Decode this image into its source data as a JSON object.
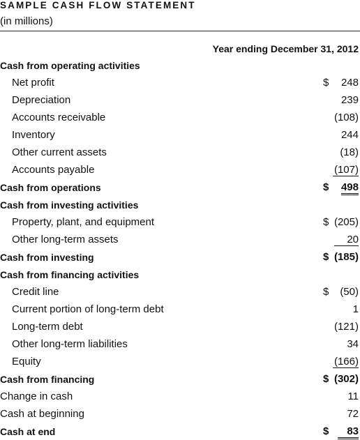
{
  "header": {
    "title": "SAMPLE CASH FLOW STATEMENT",
    "subtitle": "(in millions)",
    "column_heading": "Year ending December 31, 2012"
  },
  "rows": [
    {
      "label": "Cash from operating activities",
      "dollar": "",
      "amount": ""
    },
    {
      "label": "Net profit",
      "dollar": "$",
      "amount": "248"
    },
    {
      "label": "Depreciation",
      "dollar": "",
      "amount": "239"
    },
    {
      "label": "Accounts receivable",
      "dollar": "",
      "amount": "(108)"
    },
    {
      "label": "Inventory",
      "dollar": "",
      "amount": "244"
    },
    {
      "label": "Other current assets",
      "dollar": "",
      "amount": "(18)"
    },
    {
      "label": "Accounts payable",
      "dollar": "",
      "amount": "(107)"
    },
    {
      "label": "Cash from operations",
      "dollar": "$",
      "amount": "498"
    },
    {
      "label": "Cash from investing activities",
      "dollar": "",
      "amount": ""
    },
    {
      "label": "Property, plant, and equipment",
      "dollar": "$",
      "amount": "(205)"
    },
    {
      "label": "Other long-term assets",
      "dollar": "",
      "amount": "20"
    },
    {
      "label": "Cash from investing",
      "dollar": "$",
      "amount": "(185)"
    },
    {
      "label": "Cash from financing activities",
      "dollar": "",
      "amount": ""
    },
    {
      "label": "Credit line",
      "dollar": "$",
      "amount": "(50)"
    },
    {
      "label": "Current portion of long-term debt",
      "dollar": "",
      "amount": "1"
    },
    {
      "label": "Long-term debt",
      "dollar": "",
      "amount": "(121)"
    },
    {
      "label": "Other long-term liabilities",
      "dollar": "",
      "amount": "34"
    },
    {
      "label": "Equity",
      "dollar": "",
      "amount": "(166)"
    },
    {
      "label": "Cash from financing",
      "dollar": "$",
      "amount": "(302)"
    },
    {
      "label": "Change in cash",
      "dollar": "",
      "amount": "11"
    },
    {
      "label": "Cash at beginning",
      "dollar": "",
      "amount": "72"
    },
    {
      "label": "Cash at end",
      "dollar": "$",
      "amount": "83"
    }
  ]
}
